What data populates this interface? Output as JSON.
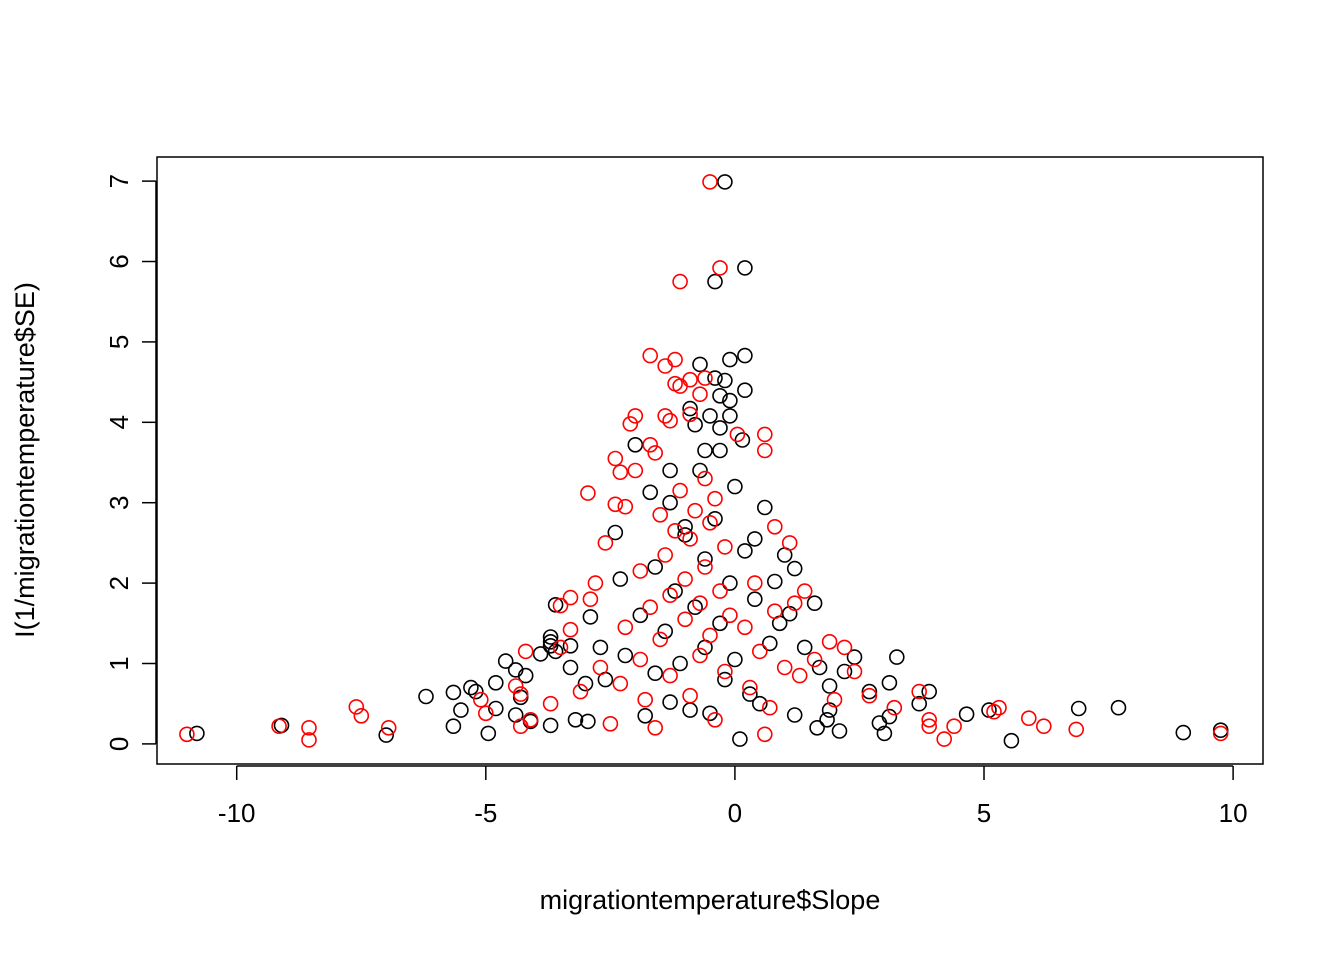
{
  "chart_data": {
    "type": "scatter",
    "title": "",
    "xlabel": "migrationtemperature$Slope",
    "ylabel": "I(1/migrationtemperature$SE)",
    "xlim": [
      -11.6,
      10.6
    ],
    "ylim": [
      -0.25,
      7.3
    ],
    "x_ticks": [
      -10,
      -5,
      0,
      5,
      10
    ],
    "x_tick_labels": [
      "-10",
      "-5",
      "0",
      "5",
      "10"
    ],
    "y_ticks": [
      0,
      1,
      2,
      3,
      4,
      5,
      6,
      7
    ],
    "y_tick_labels": [
      "0",
      "1",
      "2",
      "3",
      "4",
      "5",
      "6",
      "7"
    ],
    "grid": false,
    "legend": "none",
    "marker": "open-circle",
    "series": [
      {
        "color": "#000000",
        "points": [
          [
            -0.2,
            6.99
          ],
          [
            0.2,
            5.92
          ],
          [
            -0.4,
            5.75
          ],
          [
            0.2,
            4.83
          ],
          [
            -0.1,
            4.78
          ],
          [
            -0.7,
            4.72
          ],
          [
            -0.4,
            4.55
          ],
          [
            -0.2,
            4.52
          ],
          [
            0.2,
            4.4
          ],
          [
            -0.3,
            4.33
          ],
          [
            -0.1,
            4.27
          ],
          [
            -0.9,
            4.17
          ],
          [
            -0.5,
            4.08
          ],
          [
            -0.1,
            4.08
          ],
          [
            -0.8,
            3.97
          ],
          [
            -0.3,
            3.93
          ],
          [
            0.15,
            3.78
          ],
          [
            -2.0,
            3.72
          ],
          [
            -0.6,
            3.65
          ],
          [
            -0.3,
            3.65
          ],
          [
            -1.3,
            3.4
          ],
          [
            -1.7,
            3.13
          ],
          [
            0.6,
            2.94
          ],
          [
            -2.4,
            2.63
          ],
          [
            -1.0,
            2.6
          ],
          [
            0.4,
            2.55
          ],
          [
            1.0,
            2.35
          ],
          [
            1.2,
            2.18
          ],
          [
            0.8,
            2.02
          ],
          [
            -2.3,
            2.05
          ],
          [
            1.6,
            1.75
          ],
          [
            -3.6,
            1.73
          ],
          [
            1.1,
            1.62
          ],
          [
            -2.9,
            1.58
          ],
          [
            -3.7,
            1.33
          ],
          [
            -3.7,
            1.27
          ],
          [
            -3.7,
            1.22
          ],
          [
            -3.3,
            1.22
          ],
          [
            -2.7,
            1.2
          ],
          [
            -3.6,
            1.15
          ],
          [
            -3.9,
            1.12
          ],
          [
            2.4,
            1.08
          ],
          [
            3.25,
            1.08
          ],
          [
            -4.6,
            1.03
          ],
          [
            -3.3,
            0.95
          ],
          [
            -4.4,
            0.92
          ],
          [
            2.2,
            0.9
          ],
          [
            -4.2,
            0.85
          ],
          [
            3.1,
            0.76
          ],
          [
            -4.8,
            0.76
          ],
          [
            -3.0,
            0.75
          ],
          [
            1.9,
            0.72
          ],
          [
            -5.3,
            0.7
          ],
          [
            -5.2,
            0.65
          ],
          [
            2.7,
            0.65
          ],
          [
            3.9,
            0.65
          ],
          [
            -5.65,
            0.64
          ],
          [
            -6.2,
            0.59
          ],
          [
            -4.3,
            0.58
          ],
          [
            3.7,
            0.5
          ],
          [
            -4.8,
            0.44
          ],
          [
            -5.5,
            0.42
          ],
          [
            1.9,
            0.42
          ],
          [
            5.1,
            0.42
          ],
          [
            6.9,
            0.44
          ],
          [
            7.7,
            0.45
          ],
          [
            4.65,
            0.37
          ],
          [
            -4.4,
            0.36
          ],
          [
            1.2,
            0.36
          ],
          [
            3.1,
            0.34
          ],
          [
            -3.2,
            0.3
          ],
          [
            1.85,
            0.3
          ],
          [
            -4.1,
            0.28
          ],
          [
            -2.95,
            0.28
          ],
          [
            2.9,
            0.26
          ],
          [
            -5.65,
            0.22
          ],
          [
            -9.1,
            0.23
          ],
          [
            -3.7,
            0.23
          ],
          [
            1.65,
            0.2
          ],
          [
            2.1,
            0.16
          ],
          [
            3.0,
            0.13
          ],
          [
            9.0,
            0.14
          ],
          [
            9.75,
            0.17
          ],
          [
            -10.8,
            0.13
          ],
          [
            -4.95,
            0.13
          ],
          [
            -7.0,
            0.11
          ],
          [
            0.1,
            0.06
          ],
          [
            5.55,
            0.04
          ],
          [
            -1.8,
            0.35
          ],
          [
            -0.5,
            0.38
          ],
          [
            0.5,
            0.5
          ],
          [
            -1.3,
            0.52
          ],
          [
            -0.9,
            0.42
          ],
          [
            0.3,
            0.62
          ],
          [
            -0.2,
            0.8
          ],
          [
            -1.6,
            0.88
          ],
          [
            -1.1,
            1.0
          ],
          [
            0.0,
            1.05
          ],
          [
            -0.6,
            1.2
          ],
          [
            -2.2,
            1.1
          ],
          [
            0.7,
            1.25
          ],
          [
            -1.4,
            1.4
          ],
          [
            -0.3,
            1.5
          ],
          [
            0.9,
            1.5
          ],
          [
            -1.9,
            1.6
          ],
          [
            -0.8,
            1.7
          ],
          [
            0.4,
            1.8
          ],
          [
            -1.2,
            1.9
          ],
          [
            -0.1,
            2.0
          ],
          [
            -1.6,
            2.2
          ],
          [
            -0.6,
            2.3
          ],
          [
            0.2,
            2.4
          ],
          [
            -1.0,
            2.7
          ],
          [
            -0.4,
            2.8
          ],
          [
            -1.3,
            3.0
          ],
          [
            0.0,
            3.2
          ],
          [
            -0.7,
            3.4
          ],
          [
            1.4,
            1.2
          ],
          [
            1.7,
            0.95
          ],
          [
            -2.6,
            0.8
          ]
        ]
      },
      {
        "color": "#ff0000",
        "points": [
          [
            -0.5,
            6.99
          ],
          [
            -0.3,
            5.92
          ],
          [
            -1.1,
            5.75
          ],
          [
            -1.7,
            4.83
          ],
          [
            -1.2,
            4.78
          ],
          [
            -1.4,
            4.7
          ],
          [
            -0.6,
            4.55
          ],
          [
            -0.9,
            4.53
          ],
          [
            -1.2,
            4.48
          ],
          [
            -1.1,
            4.45
          ],
          [
            -0.7,
            4.35
          ],
          [
            -2.0,
            4.08
          ],
          [
            -1.4,
            4.08
          ],
          [
            -0.9,
            4.1
          ],
          [
            -2.1,
            3.98
          ],
          [
            -1.3,
            4.02
          ],
          [
            0.05,
            3.85
          ],
          [
            -1.7,
            3.72
          ],
          [
            -1.6,
            3.62
          ],
          [
            0.6,
            3.85
          ],
          [
            0.6,
            3.65
          ],
          [
            -2.4,
            3.55
          ],
          [
            -2.3,
            3.38
          ],
          [
            -2.0,
            3.4
          ],
          [
            -2.95,
            3.12
          ],
          [
            -2.4,
            2.98
          ],
          [
            -2.2,
            2.95
          ],
          [
            -1.5,
            2.85
          ],
          [
            0.8,
            2.7
          ],
          [
            -2.6,
            2.5
          ],
          [
            1.1,
            2.5
          ],
          [
            -2.8,
            2.0
          ],
          [
            1.4,
            1.9
          ],
          [
            -2.9,
            1.8
          ],
          [
            -3.3,
            1.82
          ],
          [
            -3.5,
            1.72
          ],
          [
            1.2,
            1.75
          ],
          [
            -3.3,
            1.42
          ],
          [
            1.9,
            1.27
          ],
          [
            2.2,
            1.2
          ],
          [
            -4.2,
            1.15
          ],
          [
            -3.5,
            1.2
          ],
          [
            2.4,
            0.9
          ],
          [
            -4.4,
            0.72
          ],
          [
            -4.3,
            0.62
          ],
          [
            2.7,
            0.6
          ],
          [
            3.7,
            0.65
          ],
          [
            -5.1,
            0.55
          ],
          [
            3.2,
            0.45
          ],
          [
            -7.6,
            0.46
          ],
          [
            -7.5,
            0.35
          ],
          [
            -5.0,
            0.38
          ],
          [
            5.3,
            0.45
          ],
          [
            5.2,
            0.4
          ],
          [
            5.9,
            0.32
          ],
          [
            3.9,
            0.3
          ],
          [
            -4.1,
            0.3
          ],
          [
            -9.15,
            0.22
          ],
          [
            -8.55,
            0.2
          ],
          [
            -6.95,
            0.2
          ],
          [
            -4.3,
            0.22
          ],
          [
            4.4,
            0.22
          ],
          [
            3.9,
            0.22
          ],
          [
            6.2,
            0.22
          ],
          [
            6.85,
            0.18
          ],
          [
            -11.0,
            0.12
          ],
          [
            9.75,
            0.13
          ],
          [
            4.2,
            0.06
          ],
          [
            -8.55,
            0.05
          ],
          [
            0.6,
            0.12
          ],
          [
            -1.6,
            0.2
          ],
          [
            -2.5,
            0.25
          ],
          [
            -0.4,
            0.3
          ],
          [
            0.7,
            0.45
          ],
          [
            -1.8,
            0.55
          ],
          [
            -0.9,
            0.6
          ],
          [
            0.3,
            0.7
          ],
          [
            -2.3,
            0.75
          ],
          [
            -1.3,
            0.85
          ],
          [
            -0.2,
            0.9
          ],
          [
            1.0,
            0.95
          ],
          [
            -1.9,
            1.05
          ],
          [
            -0.7,
            1.1
          ],
          [
            0.5,
            1.15
          ],
          [
            -1.5,
            1.3
          ],
          [
            -0.5,
            1.35
          ],
          [
            0.2,
            1.45
          ],
          [
            -2.2,
            1.45
          ],
          [
            -1.0,
            1.55
          ],
          [
            -0.1,
            1.6
          ],
          [
            0.8,
            1.65
          ],
          [
            -1.7,
            1.7
          ],
          [
            -0.7,
            1.75
          ],
          [
            -1.3,
            1.85
          ],
          [
            -0.3,
            1.9
          ],
          [
            0.4,
            2.0
          ],
          [
            -1.0,
            2.05
          ],
          [
            -1.9,
            2.15
          ],
          [
            -0.6,
            2.2
          ],
          [
            -1.4,
            2.35
          ],
          [
            -0.2,
            2.45
          ],
          [
            -0.9,
            2.55
          ],
          [
            -1.2,
            2.65
          ],
          [
            -0.5,
            2.75
          ],
          [
            -0.8,
            2.9
          ],
          [
            -0.4,
            3.05
          ],
          [
            -1.1,
            3.15
          ],
          [
            -0.6,
            3.3
          ],
          [
            1.6,
            1.05
          ],
          [
            1.3,
            0.85
          ],
          [
            -2.7,
            0.95
          ],
          [
            -3.1,
            0.65
          ],
          [
            2.0,
            0.55
          ],
          [
            -3.7,
            0.5
          ]
        ]
      }
    ]
  }
}
